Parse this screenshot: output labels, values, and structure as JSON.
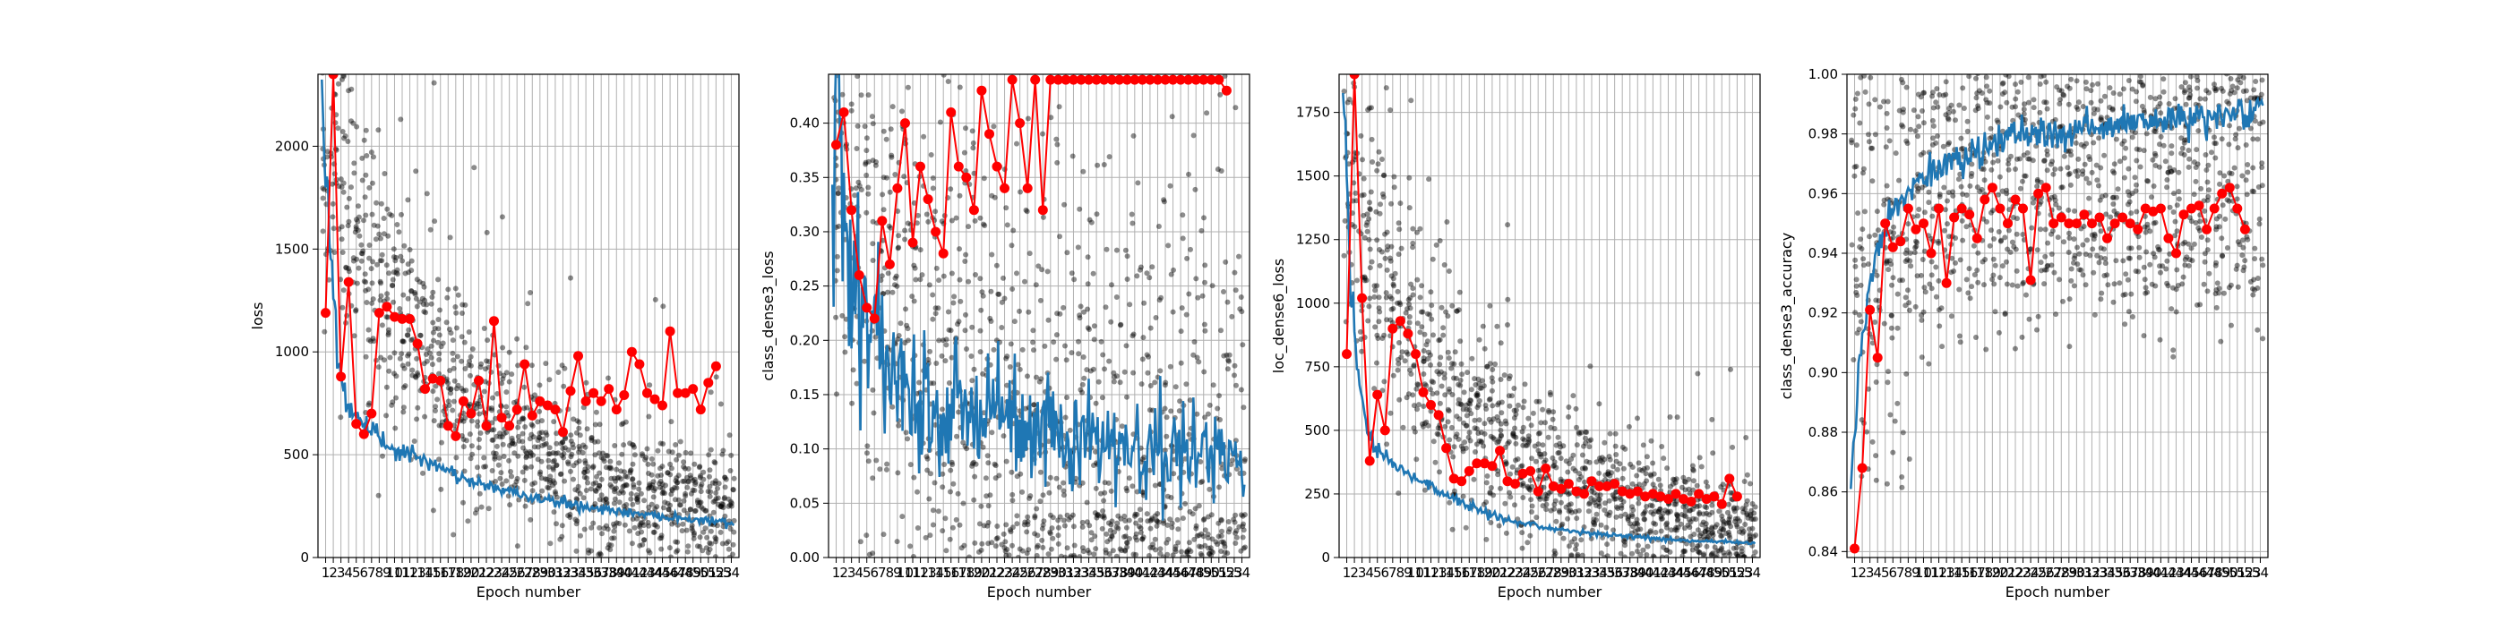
{
  "chart_data": [
    {
      "type": "line",
      "xlabel": "Epoch number",
      "ylabel": "loss",
      "xlim": [
        0,
        55
      ],
      "ylim": [
        0,
        2350
      ],
      "yticks": [
        0,
        500,
        1000,
        1500,
        2000
      ],
      "ytick_labels": [
        "0",
        "500",
        "1000",
        "1500",
        "2000"
      ],
      "x_categories": [
        1,
        2,
        3,
        4,
        5,
        6,
        7,
        8,
        9,
        10,
        11,
        12,
        13,
        14,
        15,
        16,
        17,
        18,
        19,
        20,
        21,
        22,
        23,
        24,
        25,
        26,
        27,
        28,
        29,
        30,
        31,
        32,
        33,
        34,
        35,
        36,
        37,
        38,
        39,
        40,
        41,
        42,
        43,
        44,
        45,
        46,
        47,
        48,
        49,
        50,
        51,
        52,
        53,
        54
      ],
      "grid": true,
      "scatter_series": {
        "name": "",
        "color": "#000000",
        "start": 1950,
        "end": 170,
        "decay": 3.2,
        "spread_start": 380,
        "spread_end": 120,
        "floor": 0
      },
      "series": [
        {
          "name": "",
          "color": "#1f77b4",
          "points_per_epoch": 6,
          "values": [
            2320,
            1600,
            1000,
            800,
            700,
            660,
            610,
            590,
            570,
            540,
            520,
            505,
            490,
            470,
            455,
            440,
            425,
            410,
            395,
            380,
            365,
            355,
            345,
            335,
            325,
            315,
            305,
            298,
            290,
            283,
            276,
            270,
            263,
            257,
            250,
            245,
            240,
            235,
            230,
            225,
            220,
            215,
            210,
            206,
            202,
            198,
            195,
            192,
            189,
            186,
            183,
            180,
            175,
            165
          ]
        },
        {
          "name": "",
          "color": "#ff0000",
          "markers": true,
          "values": [
            1190,
            2350,
            880,
            1340,
            650,
            600,
            700,
            1190,
            1220,
            1170,
            1160,
            1160,
            1040,
            820,
            870,
            860,
            640,
            590,
            760,
            700,
            860,
            640,
            1150,
            680,
            640,
            720,
            940,
            690,
            760,
            740,
            720,
            610,
            810,
            980,
            760,
            800,
            760,
            820,
            720,
            790,
            1000,
            940,
            800,
            770,
            740,
            1100,
            800,
            800,
            820,
            720,
            850,
            930
          ]
        }
      ]
    },
    {
      "type": "line",
      "xlabel": "Epoch number",
      "ylabel": "class_dense3_loss",
      "xlim": [
        0,
        55
      ],
      "ylim": [
        0,
        0.445
      ],
      "yticks": [
        0,
        0.05,
        0.1,
        0.15,
        0.2,
        0.25,
        0.3,
        0.35,
        0.4
      ],
      "ytick_labels": [
        "0.00",
        "0.05",
        "0.10",
        "0.15",
        "0.20",
        "0.25",
        "0.30",
        "0.35",
        "0.40"
      ],
      "x_categories": [
        1,
        2,
        3,
        4,
        5,
        6,
        7,
        8,
        9,
        10,
        11,
        12,
        13,
        14,
        15,
        16,
        17,
        18,
        19,
        20,
        21,
        22,
        23,
        24,
        25,
        26,
        27,
        28,
        29,
        30,
        31,
        32,
        33,
        34,
        35,
        36,
        37,
        38,
        39,
        40,
        41,
        42,
        43,
        44,
        45,
        46,
        47,
        48,
        49,
        50,
        51,
        52,
        53,
        54
      ],
      "grid": true,
      "scatter_series": {
        "name": "",
        "color": "#000000",
        "start": 0.36,
        "end": 0.05,
        "decay": 3.0,
        "spread_start": 0.12,
        "spread_end": 0.14,
        "floor": 0
      },
      "series": [
        {
          "name": "",
          "color": "#1f77b4",
          "points_per_epoch": 6,
          "values": [
            0.44,
            0.35,
            0.29,
            0.25,
            0.22,
            0.2,
            0.19,
            0.18,
            0.17,
            0.165,
            0.16,
            0.155,
            0.15,
            0.145,
            0.142,
            0.14,
            0.138,
            0.135,
            0.132,
            0.13,
            0.128,
            0.126,
            0.124,
            0.122,
            0.12,
            0.118,
            0.116,
            0.115,
            0.114,
            0.113,
            0.112,
            0.111,
            0.11,
            0.109,
            0.108,
            0.107,
            0.106,
            0.105,
            0.104,
            0.103,
            0.102,
            0.101,
            0.1,
            0.1,
            0.1,
            0.1,
            0.1,
            0.1,
            0.1,
            0.1,
            0.1,
            0.1,
            0.09,
            0.08
          ]
        },
        {
          "name": "",
          "color": "#ff0000",
          "markers": true,
          "values": [
            0.38,
            0.41,
            0.32,
            0.26,
            0.23,
            0.22,
            0.31,
            0.27,
            0.34,
            0.4,
            0.29,
            0.36,
            0.33,
            0.3,
            0.28,
            0.41,
            0.36,
            0.35,
            0.32,
            0.43,
            0.39,
            0.36,
            0.34,
            0.44,
            0.4,
            0.34,
            0.44,
            0.32,
            0.44,
            0.44,
            0.44,
            0.44,
            0.44,
            0.44,
            0.44,
            0.44,
            0.44,
            0.44,
            0.44,
            0.44,
            0.44,
            0.44,
            0.44,
            0.44,
            0.44,
            0.44,
            0.44,
            0.44,
            0.44,
            0.44,
            0.44,
            0.43
          ]
        }
      ]
    },
    {
      "type": "line",
      "xlabel": "Epoch number",
      "ylabel": "loc_dense6_loss",
      "xlim": [
        0,
        55
      ],
      "ylim": [
        0,
        1900
      ],
      "yticks": [
        0,
        250,
        500,
        750,
        1000,
        1250,
        1500,
        1750
      ],
      "ytick_labels": [
        "0",
        "250",
        "500",
        "750",
        "1000",
        "1250",
        "1500",
        "1750"
      ],
      "x_categories": [
        1,
        2,
        3,
        4,
        5,
        6,
        7,
        8,
        9,
        10,
        11,
        12,
        13,
        14,
        15,
        16,
        17,
        18,
        19,
        20,
        21,
        22,
        23,
        24,
        25,
        26,
        27,
        28,
        29,
        30,
        31,
        32,
        33,
        34,
        35,
        36,
        37,
        38,
        39,
        40,
        41,
        42,
        43,
        44,
        45,
        46,
        47,
        48,
        49,
        50,
        51,
        52,
        53,
        54
      ],
      "grid": true,
      "scatter_series": {
        "name": "",
        "color": "#000000",
        "start": 1500,
        "end": 70,
        "decay": 3.4,
        "spread_start": 350,
        "spread_end": 60,
        "floor": 0
      },
      "series": [
        {
          "name": "",
          "color": "#1f77b4",
          "points_per_epoch": 6,
          "values": [
            1900,
            1100,
            700,
            520,
            450,
            410,
            380,
            360,
            340,
            320,
            300,
            285,
            270,
            255,
            240,
            225,
            210,
            198,
            186,
            175,
            165,
            155,
            147,
            140,
            133,
            127,
            121,
            116,
            111,
            107,
            103,
            99,
            96,
            93,
            90,
            87,
            85,
            83,
            81,
            79,
            77,
            75,
            73,
            71,
            69,
            67,
            66,
            65,
            64,
            63,
            62,
            61,
            60,
            58
          ]
        },
        {
          "name": "",
          "color": "#ff0000",
          "markers": true,
          "values": [
            800,
            1900,
            1020,
            380,
            640,
            500,
            900,
            930,
            880,
            800,
            650,
            600,
            560,
            430,
            310,
            300,
            340,
            370,
            370,
            360,
            420,
            300,
            290,
            330,
            340,
            260,
            350,
            280,
            270,
            290,
            260,
            250,
            300,
            280,
            280,
            290,
            260,
            250,
            260,
            240,
            250,
            240,
            230,
            250,
            230,
            220,
            250,
            230,
            240,
            210,
            310,
            240
          ]
        }
      ]
    },
    {
      "type": "line",
      "xlabel": "Epoch number",
      "ylabel": "class_dense3_accuracy",
      "xlim": [
        0,
        55
      ],
      "ylim": [
        0.838,
        1.0
      ],
      "yticks": [
        0.84,
        0.86,
        0.88,
        0.9,
        0.92,
        0.94,
        0.96,
        0.98,
        1.0
      ],
      "ytick_labels": [
        "0.84",
        "0.86",
        "0.88",
        "0.90",
        "0.92",
        "0.94",
        "0.96",
        "0.98",
        "1.00"
      ],
      "x_categories": [
        1,
        2,
        3,
        4,
        5,
        6,
        7,
        8,
        9,
        10,
        11,
        12,
        13,
        14,
        15,
        16,
        17,
        18,
        19,
        20,
        21,
        22,
        23,
        24,
        25,
        26,
        27,
        28,
        29,
        30,
        31,
        32,
        33,
        34,
        35,
        36,
        37,
        38,
        39,
        40,
        41,
        42,
        43,
        44,
        45,
        46,
        47,
        48,
        49,
        50,
        51,
        52,
        53,
        54
      ],
      "grid": true,
      "scatter_series": {
        "name": "",
        "color": "#000000",
        "levels": [
          0.929,
          0.938,
          0.946,
          0.953,
          0.961,
          0.969,
          0.976,
          0.984,
          0.992,
          0.996
        ]
      },
      "series": [
        {
          "name": "",
          "color": "#1f77b4",
          "points_per_epoch": 6,
          "values": [
            0.86,
            0.9,
            0.92,
            0.935,
            0.945,
            0.952,
            0.957,
            0.96,
            0.962,
            0.964,
            0.966,
            0.968,
            0.969,
            0.97,
            0.972,
            0.973,
            0.974,
            0.975,
            0.976,
            0.977,
            0.977,
            0.978,
            0.978,
            0.979,
            0.979,
            0.98,
            0.98,
            0.98,
            0.981,
            0.981,
            0.981,
            0.982,
            0.982,
            0.982,
            0.982,
            0.983,
            0.983,
            0.983,
            0.983,
            0.984,
            0.984,
            0.984,
            0.984,
            0.985,
            0.985,
            0.985,
            0.985,
            0.986,
            0.986,
            0.986,
            0.987,
            0.987,
            0.988,
            0.989
          ]
        },
        {
          "name": "",
          "color": "#ff0000",
          "markers": true,
          "values": [
            0.841,
            0.868,
            0.921,
            0.905,
            0.95,
            0.942,
            0.944,
            0.955,
            0.948,
            0.95,
            0.94,
            0.955,
            0.93,
            0.952,
            0.955,
            0.953,
            0.945,
            0.958,
            0.962,
            0.955,
            0.95,
            0.958,
            0.955,
            0.931,
            0.96,
            0.962,
            0.95,
            0.952,
            0.95,
            0.95,
            0.953,
            0.95,
            0.952,
            0.945,
            0.95,
            0.952,
            0.95,
            0.948,
            0.955,
            0.954,
            0.955,
            0.945,
            0.94,
            0.953,
            0.955,
            0.956,
            0.948,
            0.955,
            0.96,
            0.962,
            0.955,
            0.948
          ]
        }
      ]
    }
  ]
}
